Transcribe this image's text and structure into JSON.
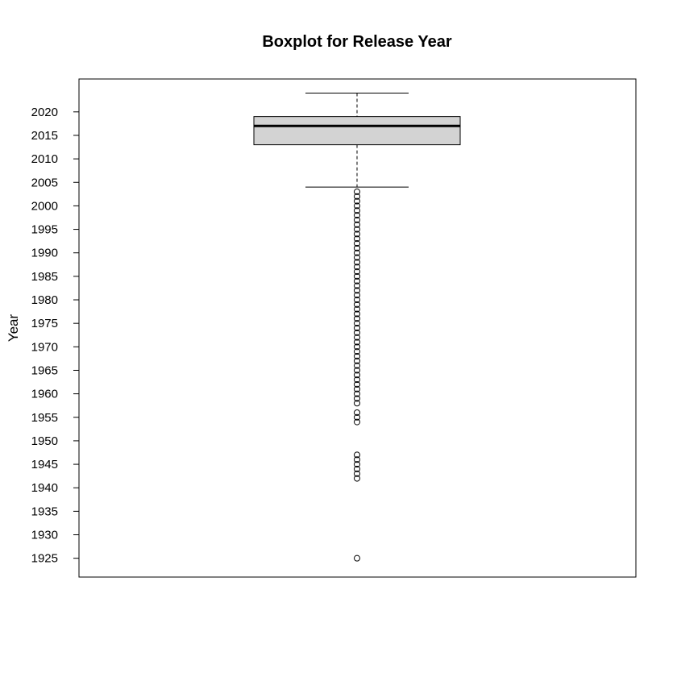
{
  "chart_data": {
    "type": "box",
    "title": "Boxplot for Release Year",
    "xlabel": "",
    "ylabel": "Year",
    "ylim": [
      1921,
      2027
    ],
    "yticks": [
      1925,
      1930,
      1935,
      1940,
      1945,
      1950,
      1955,
      1960,
      1965,
      1970,
      1975,
      1980,
      1985,
      1990,
      1995,
      2000,
      2005,
      2010,
      2015,
      2020
    ],
    "box": {
      "fill": "#d3d3d3",
      "whisker_low": 2004,
      "q1": 2013,
      "median": 2017,
      "q3": 2019,
      "whisker_high": 2024
    },
    "outliers": [
      1925,
      1942,
      1943,
      1944,
      1945,
      1946,
      1947,
      1954,
      1955,
      1956,
      1958,
      1959,
      1960,
      1961,
      1962,
      1963,
      1964,
      1965,
      1966,
      1967,
      1968,
      1969,
      1970,
      1971,
      1972,
      1973,
      1974,
      1975,
      1976,
      1977,
      1978,
      1979,
      1980,
      1981,
      1982,
      1983,
      1984,
      1985,
      1986,
      1987,
      1988,
      1989,
      1990,
      1991,
      1992,
      1993,
      1994,
      1995,
      1996,
      1997,
      1998,
      1999,
      2000,
      2001,
      2002,
      2003
    ],
    "grid": false,
    "legend": "none"
  }
}
